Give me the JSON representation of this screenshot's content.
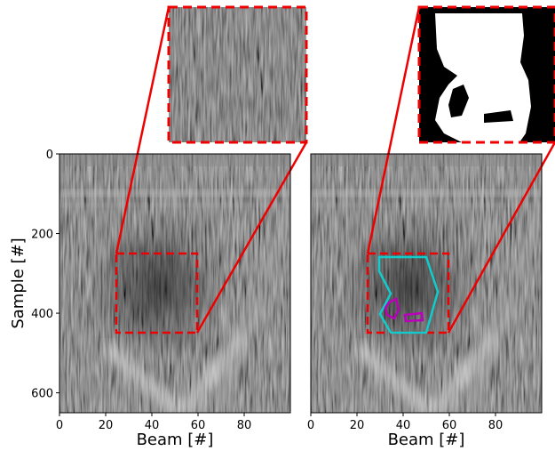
{
  "chart_data": [
    {
      "type": "image",
      "xlabel": "Beam [#]",
      "ylabel": "Sample [#]",
      "xlim": [
        0,
        100
      ],
      "ylim": [
        650,
        0
      ],
      "xticks": [
        0,
        20,
        40,
        60,
        80
      ],
      "yticks": [
        0,
        200,
        400,
        600
      ]
    },
    {
      "type": "image",
      "xlabel": "Beam [#]",
      "xlim": [
        0,
        100
      ],
      "xticks": [
        0,
        20,
        40,
        60,
        80
      ]
    }
  ]
}
